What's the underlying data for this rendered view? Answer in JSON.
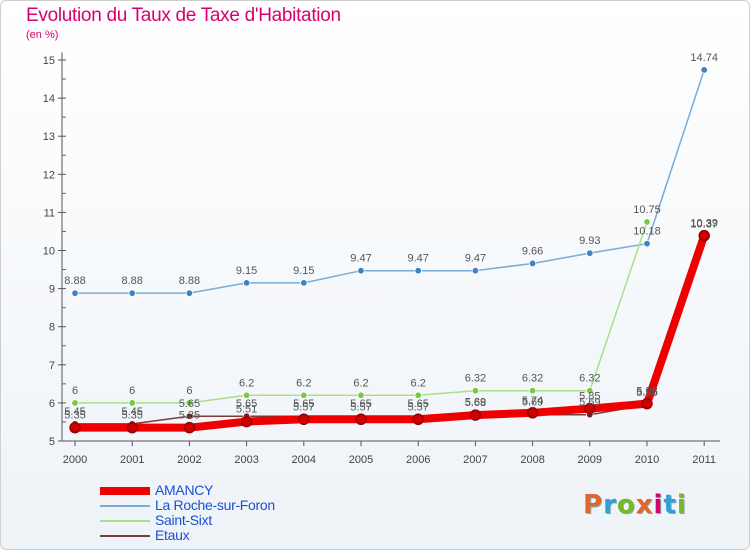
{
  "title": "Evolution du Taux de Taxe d'Habitation",
  "subtitle": "(en %)",
  "logo": {
    "text": "Proxiti",
    "colors": [
      "#e0672a",
      "#2fa1d8",
      "#76b82a",
      "#e0672a",
      "#d8006f",
      "#2fa1d8",
      "#76b82a"
    ]
  },
  "chart_data": {
    "type": "line",
    "x": [
      "2000",
      "2001",
      "2002",
      "2003",
      "2004",
      "2005",
      "2006",
      "2007",
      "2008",
      "2009",
      "2010",
      "2011"
    ],
    "yticks": [
      "5",
      "6",
      "7",
      "8",
      "9",
      "10",
      "11",
      "12",
      "13",
      "14",
      "15"
    ],
    "ylim": [
      5,
      15.2
    ],
    "grid": false,
    "legend_position": "bottom-left",
    "series": [
      {
        "name": "La Roche-sur-Foron",
        "color": "#7aaad6",
        "marker": "#3d83c4",
        "values": [
          8.88,
          8.88,
          8.88,
          9.15,
          9.15,
          9.47,
          9.47,
          9.47,
          9.66,
          9.93,
          10.18,
          14.74
        ],
        "labels": [
          "8.88",
          "8.88",
          "8.88",
          "9.15",
          "9.15",
          "9.47",
          "9.47",
          "9.47",
          "9.66",
          "9.93",
          "10.18",
          "14.74"
        ]
      },
      {
        "name": "Saint-Sixt",
        "color": "#a9e08a",
        "marker": "#7ac943",
        "values": [
          6,
          6,
          6,
          6.2,
          6.2,
          6.2,
          6.2,
          6.32,
          6.32,
          6.32,
          10.75,
          null
        ],
        "labels": [
          "6",
          "6",
          "6",
          "6.2",
          "6.2",
          "6.2",
          "6.2",
          "6.32",
          "6.32",
          "6.32",
          "10.75",
          ""
        ]
      },
      {
        "name": "Etaux",
        "color": "#7d3b3b",
        "marker": "#6b2525",
        "values": [
          5.45,
          5.45,
          5.65,
          5.65,
          5.65,
          5.65,
          5.65,
          5.69,
          5.69,
          5.69,
          5.95,
          10.37
        ],
        "labels": [
          "5.45",
          "5.45",
          "5.65",
          "5.65",
          "5.65",
          "5.65",
          "5.65",
          "5.69",
          "5.69",
          "5.69",
          "5.95",
          "10.37"
        ]
      },
      {
        "name": "AMANCY",
        "color": "#ee0000",
        "marker": "#cc0000",
        "values": [
          5.35,
          5.35,
          5.35,
          5.51,
          5.57,
          5.57,
          5.57,
          5.68,
          5.74,
          5.85,
          5.98,
          10.39
        ],
        "labels": [
          "5.35",
          "5.35",
          "5.35",
          "5.51",
          "5.57",
          "5.57",
          "5.57",
          "5.68",
          "5.74",
          "5.85",
          "5.98",
          "10.39"
        ]
      }
    ],
    "legend": [
      "AMANCY",
      "La Roche-sur-Foron",
      "Saint-Sixt",
      "Etaux"
    ]
  }
}
